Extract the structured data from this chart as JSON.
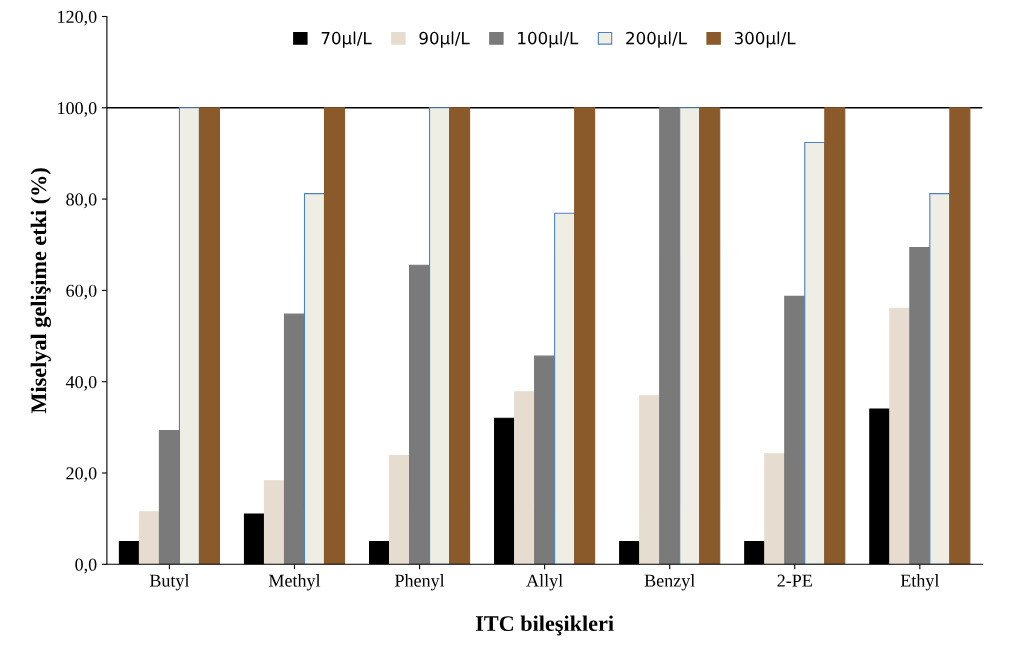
{
  "chart_data": {
    "type": "bar",
    "xlabel": "ITC bileşikleri",
    "ylabel": "Miselyal gelişime etki (%)",
    "categories": [
      "Butyl",
      "Methyl",
      "Phenyl",
      "Allyl",
      "Benzyl",
      "2-PE",
      "Ethyl"
    ],
    "series": [
      {
        "name": "70µl/L",
        "color": "#000000",
        "values": [
          5,
          11,
          5,
          32,
          5,
          5,
          34
        ]
      },
      {
        "name": "90µl/L",
        "color": "#e6ddd0",
        "values": [
          11.5,
          18.3,
          23.8,
          37.8,
          36.9,
          24.2,
          56.1
        ]
      },
      {
        "name": "100µl/L",
        "color": "#7a7a7a",
        "values": [
          29.3,
          54.8,
          65.5,
          45.6,
          100,
          58.7,
          69.4
        ]
      },
      {
        "name": "200µl/L",
        "color": "#efeee4",
        "values": [
          100,
          81.2,
          100,
          76.9,
          100,
          92.4,
          81.2
        ]
      },
      {
        "name": "300µl/L",
        "color": "#8b5a2b",
        "values": [
          100,
          100,
          100,
          100,
          100,
          100,
          100
        ]
      }
    ],
    "ylim": [
      0,
      120
    ],
    "yticks": [
      {
        "value": 0,
        "label": "0,0"
      },
      {
        "value": 20,
        "label": "20,0"
      },
      {
        "value": 40,
        "label": "40,0"
      },
      {
        "value": 60,
        "label": "60,0"
      },
      {
        "value": 80,
        "label": "80,0"
      },
      {
        "value": 100,
        "label": "100,0"
      },
      {
        "value": 120,
        "label": "120,0"
      }
    ],
    "ref_lines": [
      {
        "axis": "y",
        "value": 100,
        "color": "#000000"
      }
    ],
    "legend": "top",
    "grid": false
  }
}
